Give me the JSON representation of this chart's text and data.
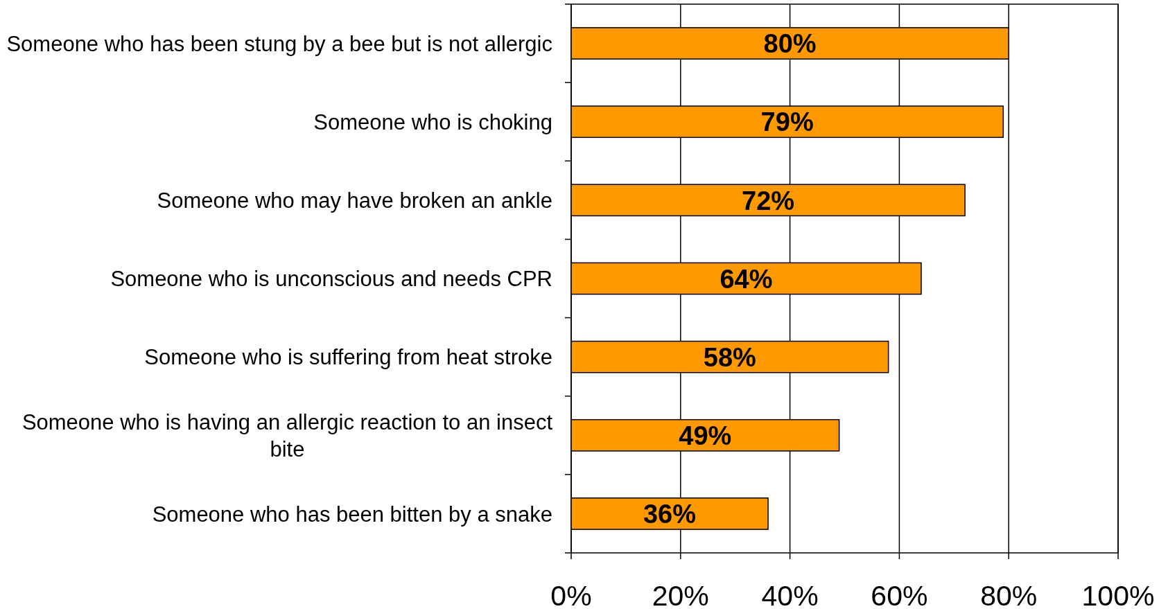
{
  "chart_data": {
    "type": "bar",
    "orientation": "horizontal",
    "categories": [
      "Someone who has been stung by a bee but is not allergic",
      "Someone who is choking",
      "Someone who may have broken an ankle",
      "Someone who is unconscious and needs CPR",
      "Someone who is suffering from heat stroke",
      "Someone who is having an allergic reaction to an insect bite",
      "Someone who has been bitten by a snake"
    ],
    "values": [
      80,
      79,
      72,
      64,
      58,
      49,
      36
    ],
    "value_labels": [
      "80%",
      "79%",
      "72%",
      "64%",
      "58%",
      "49%",
      "36%"
    ],
    "color": "#ff9900",
    "xlim": [
      0,
      100
    ],
    "xticks": [
      {
        "value": 0,
        "label": "0%"
      },
      {
        "value": 20,
        "label": "20%"
      },
      {
        "value": 40,
        "label": "40%"
      },
      {
        "value": 60,
        "label": "60%"
      },
      {
        "value": 80,
        "label": "80%"
      },
      {
        "value": 100,
        "label": "100%"
      }
    ],
    "grid": "x"
  }
}
